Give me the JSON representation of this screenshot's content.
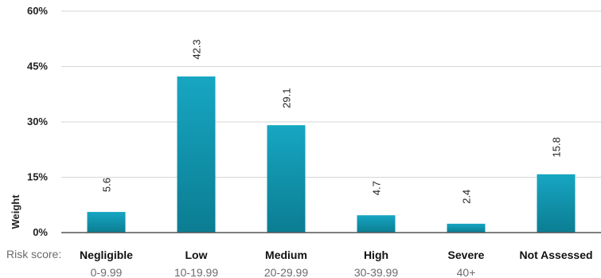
{
  "chart_data": {
    "type": "bar",
    "categories": [
      "Negligible",
      "Low",
      "Medium",
      "High",
      "Severe",
      "Not Assessed"
    ],
    "category_ranges": [
      "0-9.99",
      "10-19.99",
      "20-29.99",
      "30-39.99",
      "40+",
      ""
    ],
    "range_row_label": "Risk score:",
    "values": [
      5.6,
      42.3,
      29.1,
      4.7,
      2.4,
      15.8
    ],
    "data_labels": [
      "5.6",
      "42.3",
      "29.1",
      "4.7",
      "2.4",
      "15.8"
    ],
    "ylabel": "Weight",
    "ylim": [
      0,
      60
    ],
    "yticks": [
      0,
      15,
      30,
      45,
      60
    ],
    "ytick_labels": [
      "0%",
      "15%",
      "30%",
      "45%",
      "60%"
    ],
    "grid": true,
    "legend": "none",
    "colors": {
      "bar_top": "#17a6c2",
      "bar_bottom": "#0b7d92"
    }
  }
}
